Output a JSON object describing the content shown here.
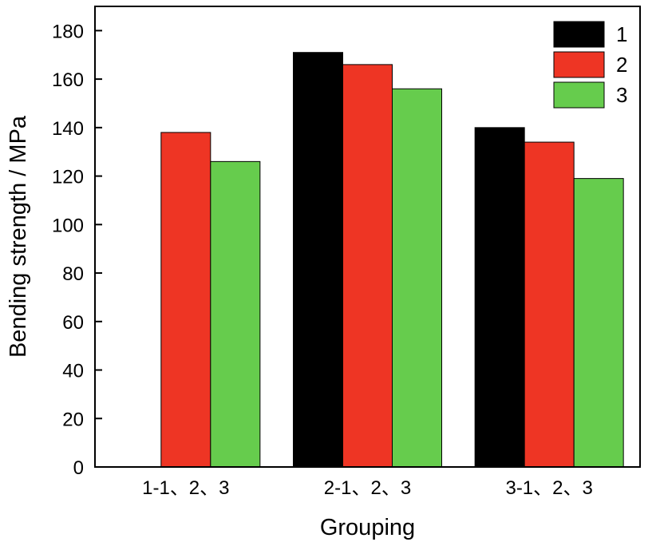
{
  "chart_data": {
    "type": "bar",
    "title": "",
    "xlabel": "Grouping",
    "ylabel": "Bending strength / MPa",
    "ylim": [
      0,
      190
    ],
    "yticks": [
      0,
      20,
      40,
      60,
      80,
      100,
      120,
      140,
      160,
      180
    ],
    "categories": [
      "1-1、2、3",
      "2-1、2、3",
      "3-1、2、3"
    ],
    "series": [
      {
        "name": "1",
        "color": "#000000",
        "values": [
          0,
          171,
          140
        ]
      },
      {
        "name": "2",
        "color": "#ee3524",
        "values": [
          138,
          166,
          134
        ]
      },
      {
        "name": "3",
        "color": "#66cc4d",
        "values": [
          126,
          156,
          119
        ]
      }
    ],
    "legend_position": "top-right",
    "grid": false
  }
}
